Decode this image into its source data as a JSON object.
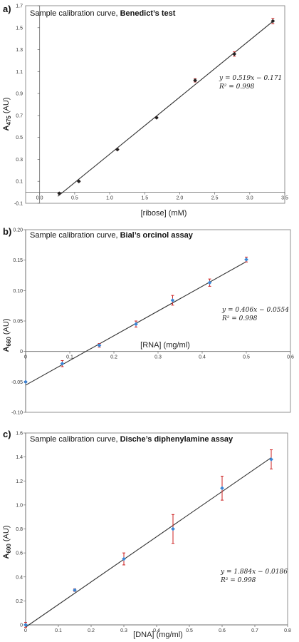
{
  "chart_data": [
    {
      "type": "scatter",
      "panel_label": "a)",
      "title_prefix": "Sample calibration curve, ",
      "title_bold": "Benedict’s test",
      "xlabel": "[ribose] (mM)",
      "ylabel_main": "A",
      "ylabel_sub": "475",
      "ylabel_unit": " (AU)",
      "xlim": [
        -0.2,
        3.5
      ],
      "ylim": [
        -0.1,
        1.7
      ],
      "xticks": [
        0.0,
        0.5,
        1.0,
        1.5,
        2.0,
        2.5,
        3.0,
        3.5
      ],
      "xtick_labels": [
        "0.0",
        "0.5",
        "1.0",
        "1.5",
        "2.0",
        "2.5",
        "3.0",
        "3.5"
      ],
      "yticks": [
        -0.1,
        0.1,
        0.3,
        0.5,
        0.7,
        0.9,
        1.1,
        1.3,
        1.5,
        1.7
      ],
      "ytick_labels": [
        "-0.1",
        "0.1",
        "0.3",
        "0.5",
        "0.7",
        "0.9",
        "1.1",
        "1.3",
        "1.5",
        "1.7"
      ],
      "x": [
        0.28,
        0.56,
        1.11,
        1.67,
        2.22,
        2.78,
        3.33
      ],
      "y": [
        -0.01,
        0.1,
        0.39,
        0.68,
        1.02,
        1.26,
        1.56
      ],
      "yerr": [
        0.005,
        0.005,
        0.005,
        0.005,
        0.015,
        0.02,
        0.025
      ],
      "fit": {
        "slope": 0.519,
        "intercept": -0.171,
        "x_range": [
          0.26,
          3.35
        ]
      },
      "equation": "y = 0.519x − 0.171",
      "r2": "R² = 0.998",
      "marker_color": "#222222",
      "errbar_color": "#cc2222",
      "line_color": "#333333"
    },
    {
      "type": "scatter",
      "panel_label": "b)",
      "title_prefix": "Sample calibration curve, ",
      "title_bold": "Bial’s orcinol assay",
      "xlabel": "[RNA] (mg/ml)",
      "ylabel_main": "A",
      "ylabel_sub": "660",
      "ylabel_unit": " (AU)",
      "xlim": [
        0,
        0.6
      ],
      "ylim": [
        -0.1,
        0.2
      ],
      "xticks": [
        0,
        0.1,
        0.2,
        0.3,
        0.4,
        0.5,
        0.6
      ],
      "xtick_labels": [
        "0",
        "0.1",
        "0.2",
        "0.3",
        "0.4",
        "0.5",
        "0.6"
      ],
      "yticks": [
        -0.1,
        -0.05,
        0,
        0.05,
        0.1,
        0.15,
        0.2
      ],
      "ytick_labels": [
        "-0.10",
        "-0.05",
        "0",
        "0.05",
        "0.10",
        "0.15",
        "0.20"
      ],
      "x": [
        0,
        0.083,
        0.167,
        0.25,
        0.333,
        0.417,
        0.5
      ],
      "y": [
        -0.05,
        -0.02,
        0.01,
        0.045,
        0.084,
        0.113,
        0.151
      ],
      "yerr": [
        0.001,
        0.005,
        0.003,
        0.005,
        0.008,
        0.006,
        0.004
      ],
      "fit": {
        "slope": 0.406,
        "intercept": -0.0554,
        "x_range": [
          0,
          0.5
        ]
      },
      "equation": "y = 0.406x − 0.0554",
      "r2": "R² = 0.998",
      "marker_color": "#3b87d6",
      "errbar_color": "#cc2222",
      "line_color": "#333333"
    },
    {
      "type": "scatter",
      "panel_label": "c)",
      "title_prefix": "Sample calibration curve, ",
      "title_bold": "Dische’s diphenylamine assay",
      "xlabel": "[DNA] (mg/ml)",
      "ylabel_main": "A",
      "ylabel_sub": "600",
      "ylabel_unit": " (AU)",
      "xlim": [
        0,
        0.8
      ],
      "ylim": [
        0,
        1.6
      ],
      "xticks": [
        0,
        0.1,
        0.2,
        0.3,
        0.4,
        0.5,
        0.6,
        0.7,
        0.8
      ],
      "xtick_labels": [
        "0",
        "0.1",
        "0.2",
        "0.3",
        "0.4",
        "0.5",
        "0.6",
        "0.7",
        "0.8"
      ],
      "yticks": [
        0,
        0.2,
        0.4,
        0.6,
        0.8,
        1.0,
        1.2,
        1.4,
        1.6
      ],
      "ytick_labels": [
        "0",
        "0.2",
        "0.4",
        "0.6",
        "0.8",
        "1.0",
        "1.2",
        "1.4",
        "1.6"
      ],
      "x": [
        0,
        0.15,
        0.3,
        0.45,
        0.6,
        0.75
      ],
      "y": [
        0,
        0.29,
        0.55,
        0.8,
        1.14,
        1.38
      ],
      "yerr": [
        0.02,
        0.01,
        0.05,
        0.12,
        0.1,
        0.08
      ],
      "fit": {
        "slope": 1.884,
        "intercept": -0.0186,
        "x_range": [
          0,
          0.75
        ]
      },
      "equation": "y = 1.884x − 0.0186",
      "r2": "R² = 0.998",
      "marker_color": "#3b87d6",
      "errbar_color": "#cc2222",
      "line_color": "#333333"
    }
  ]
}
